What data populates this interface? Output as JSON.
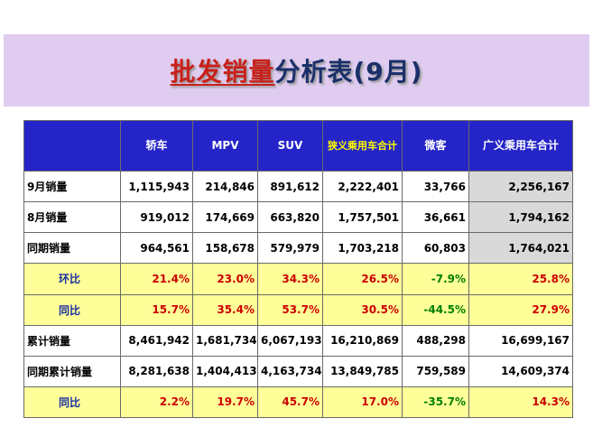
{
  "title": {
    "part1": "批发销量",
    "part2": "分析表(9月)"
  },
  "columns": [
    "",
    "轿车",
    "MPV",
    "SUV",
    "狭义乘用车合计",
    "微客",
    "广义乘用车合计"
  ],
  "rows": [
    {
      "label": "9月销量",
      "values": [
        "1,115,943",
        "214,846",
        "891,612",
        "2,222,401",
        "33,766",
        "2,256,167"
      ]
    },
    {
      "label": "8月销量",
      "values": [
        "919,012",
        "174,669",
        "663,820",
        "1,757,501",
        "36,661",
        "1,794,162"
      ]
    },
    {
      "label": "同期销量",
      "values": [
        "964,561",
        "158,678",
        "579,979",
        "1,703,218",
        "60,803",
        "1,764,021"
      ]
    },
    {
      "label": "环比",
      "values": [
        "21.4%",
        "23.0%",
        "34.3%",
        "26.5%",
        "-7.9%",
        "25.8%"
      ]
    },
    {
      "label": "同比",
      "values": [
        "15.7%",
        "35.4%",
        "53.7%",
        "30.5%",
        "-44.5%",
        "27.9%"
      ]
    },
    {
      "label": "累计销量",
      "values": [
        "8,461,942",
        "1,681,734",
        "6,067,193",
        "16,210,869",
        "488,298",
        "16,699,167"
      ]
    },
    {
      "label": "同期累计销量",
      "values": [
        "8,281,638",
        "1,404,413",
        "4,163,734",
        "13,849,785",
        "759,589",
        "14,609,374"
      ]
    },
    {
      "label": "同比",
      "values": [
        "2.2%",
        "19.7%",
        "45.7%",
        "17.0%",
        "-35.7%",
        "14.3%"
      ]
    }
  ]
}
